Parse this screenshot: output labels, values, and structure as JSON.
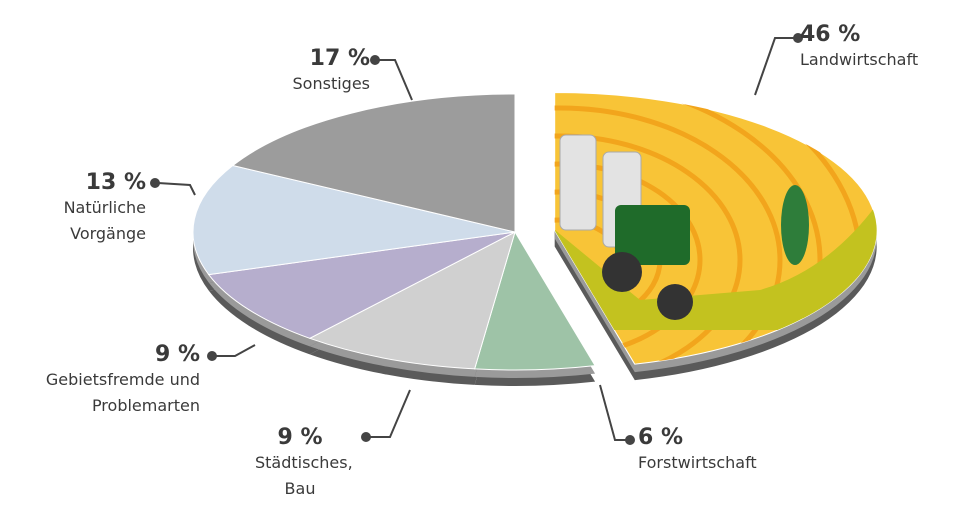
{
  "chart_data": {
    "type": "pie",
    "categories": [
      "Landwirtschaft",
      "Forstwirtschaft",
      "Städtisches, Bau",
      "Gebietsfremde und Problemarten",
      "Natürliche Vorgänge",
      "Sonstiges"
    ],
    "values": [
      46,
      6,
      9,
      9,
      13,
      17
    ],
    "value_labels": [
      "46 %",
      "6 %",
      "9 %",
      "9 %",
      "13 %",
      "17 %"
    ],
    "colors": [
      "#f8c437",
      "#9ec3a7",
      "#d0d0d0",
      "#b6aecd",
      "#cfdcea",
      "#9c9c9c"
    ]
  }
}
